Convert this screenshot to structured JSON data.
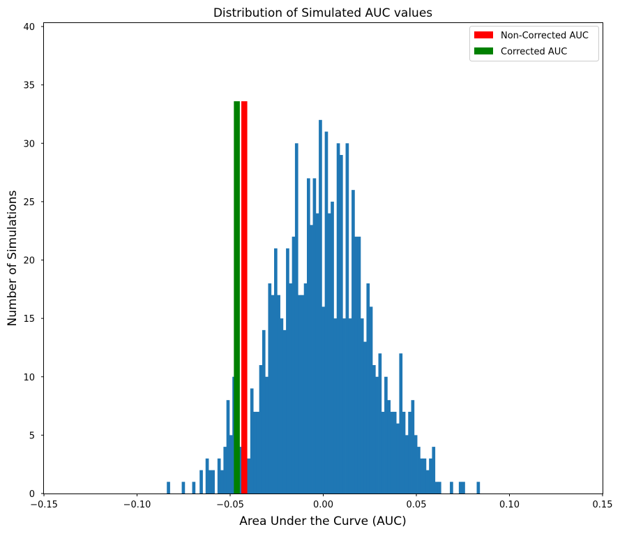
{
  "chart_data": {
    "type": "bar",
    "title": "Distribution of Simulated AUC values",
    "xlabel": "Area Under the Curve (AUC)",
    "ylabel": "Number of Simulations",
    "xlim": [
      -0.15,
      0.15
    ],
    "ylim": [
      0,
      40.3
    ],
    "xticks": [
      -0.15,
      -0.1,
      -0.05,
      0.0,
      0.05,
      0.1,
      0.15
    ],
    "xtick_labels": [
      "−0.15",
      "−0.10",
      "−0.05",
      "0.00",
      "0.05",
      "0.10",
      "0.15"
    ],
    "yticks": [
      0,
      5,
      10,
      15,
      20,
      25,
      30,
      35,
      40
    ],
    "ytick_labels": [
      "0",
      "5",
      "10",
      "15",
      "20",
      "25",
      "30",
      "35",
      "40"
    ],
    "grid": false,
    "legend_position": "top-right",
    "histogram": {
      "color": "#1f77b4",
      "bin_width": 0.0016,
      "bins": [
        [
          -0.084,
          1
        ],
        [
          -0.076,
          1
        ],
        [
          -0.0704,
          1
        ],
        [
          -0.0664,
          2
        ],
        [
          -0.0632,
          3
        ],
        [
          -0.0616,
          2
        ],
        [
          -0.06,
          2
        ],
        [
          -0.0568,
          3
        ],
        [
          -0.0552,
          2
        ],
        [
          -0.0536,
          4
        ],
        [
          -0.052,
          8
        ],
        [
          -0.0504,
          5
        ],
        [
          -0.0488,
          10
        ],
        [
          -0.0472,
          4
        ],
        [
          -0.0456,
          4
        ],
        [
          -0.044,
          4
        ],
        [
          -0.0424,
          3
        ],
        [
          -0.0408,
          3
        ],
        [
          -0.0392,
          9
        ],
        [
          -0.0376,
          7
        ],
        [
          -0.036,
          7
        ],
        [
          -0.0344,
          11
        ],
        [
          -0.0328,
          14
        ],
        [
          -0.0312,
          10
        ],
        [
          -0.0296,
          18
        ],
        [
          -0.028,
          17
        ],
        [
          -0.0264,
          21
        ],
        [
          -0.0248,
          17
        ],
        [
          -0.0232,
          15
        ],
        [
          -0.0216,
          14
        ],
        [
          -0.02,
          21
        ],
        [
          -0.0184,
          18
        ],
        [
          -0.0168,
          22
        ],
        [
          -0.0152,
          30
        ],
        [
          -0.0136,
          17
        ],
        [
          -0.012,
          17
        ],
        [
          -0.0104,
          18
        ],
        [
          -0.0088,
          27
        ],
        [
          -0.0072,
          23
        ],
        [
          -0.0056,
          27
        ],
        [
          -0.004,
          24
        ],
        [
          -0.0024,
          32
        ],
        [
          -0.0008,
          16
        ],
        [
          0.0008,
          31
        ],
        [
          0.0024,
          24
        ],
        [
          0.004,
          25
        ],
        [
          0.0056,
          15
        ],
        [
          0.0072,
          30
        ],
        [
          0.0088,
          29
        ],
        [
          0.0104,
          15
        ],
        [
          0.012,
          30
        ],
        [
          0.0136,
          15
        ],
        [
          0.0152,
          26
        ],
        [
          0.0168,
          22
        ],
        [
          0.0184,
          22
        ],
        [
          0.02,
          15
        ],
        [
          0.0216,
          13
        ],
        [
          0.0232,
          18
        ],
        [
          0.0248,
          16
        ],
        [
          0.0264,
          11
        ],
        [
          0.028,
          10
        ],
        [
          0.0296,
          12
        ],
        [
          0.0312,
          7
        ],
        [
          0.0328,
          10
        ],
        [
          0.0344,
          8
        ],
        [
          0.036,
          7
        ],
        [
          0.0376,
          7
        ],
        [
          0.0392,
          6
        ],
        [
          0.0408,
          12
        ],
        [
          0.0424,
          7
        ],
        [
          0.044,
          5
        ],
        [
          0.0456,
          7
        ],
        [
          0.0472,
          8
        ],
        [
          0.0488,
          5
        ],
        [
          0.0504,
          4
        ],
        [
          0.052,
          3
        ],
        [
          0.0536,
          3
        ],
        [
          0.0552,
          2
        ],
        [
          0.0568,
          3
        ],
        [
          0.0584,
          4
        ],
        [
          0.06,
          1
        ],
        [
          0.0616,
          1
        ],
        [
          0.068,
          1
        ],
        [
          0.0728,
          1
        ],
        [
          0.0744,
          1
        ],
        [
          0.0824,
          1
        ]
      ]
    },
    "markers": [
      {
        "name": "Non-Corrected AUC",
        "x_start": -0.044,
        "x_end": -0.0408,
        "height": 33.6,
        "color": "#ff0000"
      },
      {
        "name": "Corrected AUC",
        "x_start": -0.048,
        "x_end": -0.0448,
        "height": 33.6,
        "color": "#008000"
      }
    ],
    "legend": [
      {
        "label": "Non-Corrected AUC",
        "color": "#ff0000"
      },
      {
        "label": "Corrected AUC",
        "color": "#008000"
      }
    ]
  }
}
